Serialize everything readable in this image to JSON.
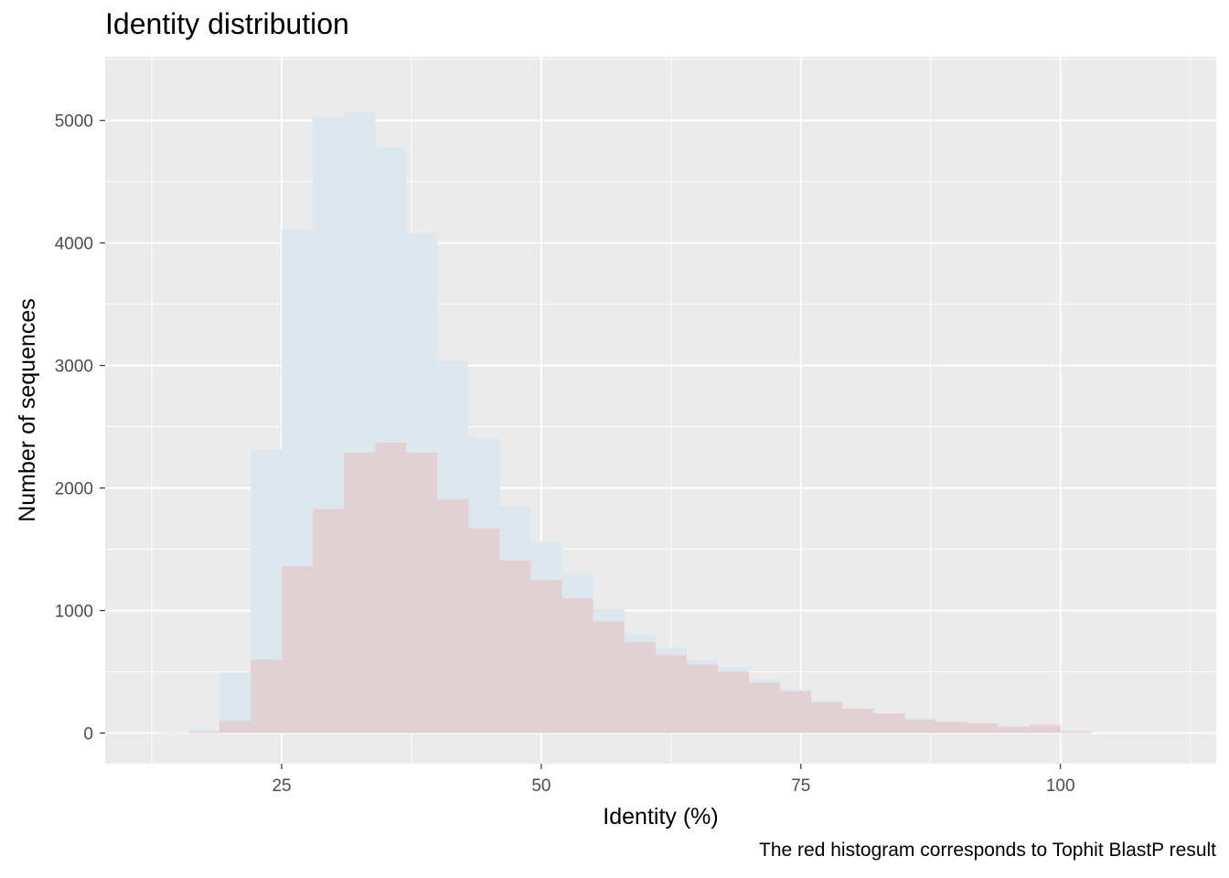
{
  "chart_data": {
    "type": "bar",
    "subtype": "overlaid-histogram",
    "title": "Identity distribution",
    "xlabel": "Identity (%)",
    "ylabel": "Number of sequences",
    "caption": "The red histogram corresponds to Tophit BlastP result",
    "xlim": [
      8,
      115
    ],
    "ylim": [
      -250,
      5520
    ],
    "x_ticks": [
      25,
      50,
      75,
      100
    ],
    "y_ticks": [
      0,
      1000,
      2000,
      3000,
      4000,
      5000
    ],
    "grid": true,
    "legend": "none",
    "bin_width": 3,
    "bin_starts": [
      13,
      16,
      19,
      22,
      25,
      28,
      31,
      34,
      37,
      40,
      43,
      46,
      49,
      52,
      55,
      58,
      61,
      64,
      67,
      70,
      73,
      76,
      79,
      82,
      85,
      88,
      91,
      94,
      97,
      100
    ],
    "series": [
      {
        "color": "#dde8ee",
        "opacity": 1,
        "values": [
          5,
          25,
          490,
          2310,
          4110,
          5030,
          5070,
          4780,
          4080,
          3040,
          2410,
          1850,
          1560,
          1300,
          1010,
          800,
          700,
          600,
          540,
          440,
          360,
          270,
          200,
          160,
          120,
          100,
          80,
          60,
          50,
          20
        ]
      },
      {
        "color": "#f8766d",
        "opacity": 0.2,
        "values": [
          2,
          10,
          100,
          600,
          1360,
          1830,
          2290,
          2370,
          2290,
          1910,
          1670,
          1410,
          1250,
          1100,
          910,
          740,
          640,
          560,
          500,
          410,
          340,
          250,
          200,
          160,
          110,
          90,
          80,
          50,
          70,
          10
        ]
      }
    ]
  }
}
